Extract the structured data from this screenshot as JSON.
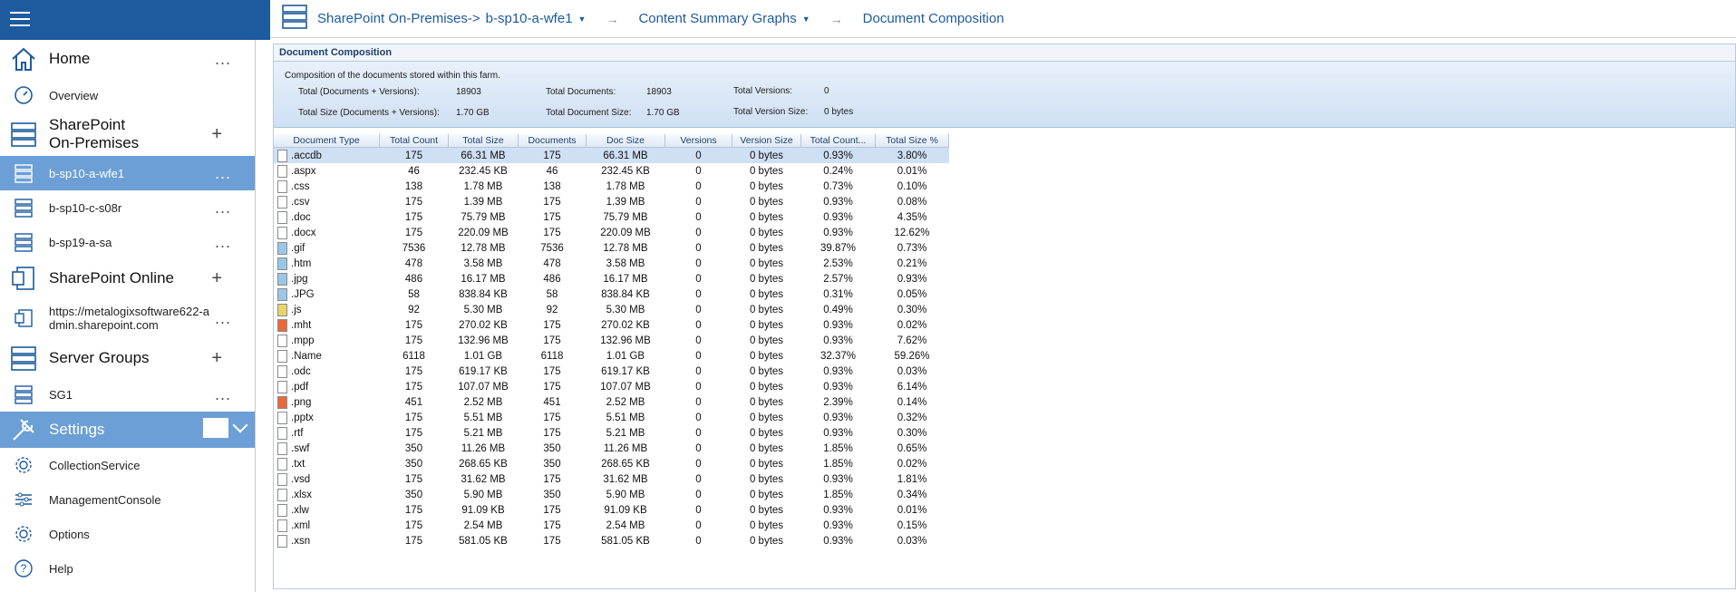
{
  "sidebar": {
    "home": {
      "label": "Home",
      "action": "..."
    },
    "overview": {
      "label": "Overview"
    },
    "sp_onprem": {
      "label_line1": "SharePoint",
      "label_line2": "On-Premises",
      "action": "+"
    },
    "servers": [
      {
        "label": "b-sp10-a-wfe1",
        "action": "..."
      },
      {
        "label": "b-sp10-c-s08r",
        "action": "..."
      },
      {
        "label": "b-sp19-a-sa",
        "action": "..."
      }
    ],
    "sp_online": {
      "label": "SharePoint Online",
      "action": "+"
    },
    "online_tenant": {
      "label_line1": "https://metalogixsoftware622-a",
      "label_line2": "dmin.sharepoint.com",
      "action": "..."
    },
    "server_groups": {
      "label": "Server Groups",
      "action": "+"
    },
    "sg1": {
      "label": "SG1",
      "action": "..."
    },
    "settings": {
      "label": "Settings"
    },
    "settings_items": [
      {
        "label": "CollectionService"
      },
      {
        "label": "ManagementConsole"
      },
      {
        "label": "Options"
      },
      {
        "label": "Help"
      }
    ]
  },
  "breadcrumb": {
    "root": "SharePoint On-Premises->",
    "server": "b-sp10-a-wfe1",
    "graphs": "Content Summary Graphs",
    "current": "Document Composition",
    "separator": "→"
  },
  "panel": {
    "title": "Document Composition",
    "description": "Composition of the documents stored within this farm.",
    "stats": {
      "total_docs_versions_label": "Total (Documents + Versions):",
      "total_docs_versions_value": "18903",
      "total_size_label": "Total Size (Documents + Versions):",
      "total_size_value": "1.70 GB",
      "total_documents_label": "Total Documents:",
      "total_documents_value": "18903",
      "total_doc_size_label": "Total Document Size:",
      "total_doc_size_value": "1.70 GB",
      "total_versions_label": "Total Versions:",
      "total_versions_value": "0",
      "total_version_size_label": "Total Version Size:",
      "total_version_size_value": "0 bytes"
    }
  },
  "table": {
    "columns": [
      "Document Type",
      "Total Count",
      "Total Size",
      "Documents",
      "Doc Size",
      "Versions",
      "Version Size",
      "Total Count...",
      "Total Size %"
    ],
    "rows": [
      [
        ".accdb",
        "175",
        "66.31 MB",
        "175",
        "66.31 MB",
        "0",
        "0 bytes",
        "0.93%",
        "3.80%"
      ],
      [
        ".aspx",
        "46",
        "232.45 KB",
        "46",
        "232.45 KB",
        "0",
        "0 bytes",
        "0.24%",
        "0.01%"
      ],
      [
        ".css",
        "138",
        "1.78 MB",
        "138",
        "1.78 MB",
        "0",
        "0 bytes",
        "0.73%",
        "0.10%"
      ],
      [
        ".csv",
        "175",
        "1.39 MB",
        "175",
        "1.39 MB",
        "0",
        "0 bytes",
        "0.93%",
        "0.08%"
      ],
      [
        ".doc",
        "175",
        "75.79 MB",
        "175",
        "75.79 MB",
        "0",
        "0 bytes",
        "0.93%",
        "4.35%"
      ],
      [
        ".docx",
        "175",
        "220.09 MB",
        "175",
        "220.09 MB",
        "0",
        "0 bytes",
        "0.93%",
        "12.62%"
      ],
      [
        ".gif",
        "7536",
        "12.78 MB",
        "7536",
        "12.78 MB",
        "0",
        "0 bytes",
        "39.87%",
        "0.73%"
      ],
      [
        ".htm",
        "478",
        "3.58 MB",
        "478",
        "3.58 MB",
        "0",
        "0 bytes",
        "2.53%",
        "0.21%"
      ],
      [
        ".jpg",
        "486",
        "16.17 MB",
        "486",
        "16.17 MB",
        "0",
        "0 bytes",
        "2.57%",
        "0.93%"
      ],
      [
        ".JPG",
        "58",
        "838.84 KB",
        "58",
        "838.84 KB",
        "0",
        "0 bytes",
        "0.31%",
        "0.05%"
      ],
      [
        ".js",
        "92",
        "5.30 MB",
        "92",
        "5.30 MB",
        "0",
        "0 bytes",
        "0.49%",
        "0.30%"
      ],
      [
        ".mht",
        "175",
        "270.02 KB",
        "175",
        "270.02 KB",
        "0",
        "0 bytes",
        "0.93%",
        "0.02%"
      ],
      [
        ".mpp",
        "175",
        "132.96 MB",
        "175",
        "132.96 MB",
        "0",
        "0 bytes",
        "0.93%",
        "7.62%"
      ],
      [
        ".Name",
        "6118",
        "1.01 GB",
        "6118",
        "1.01 GB",
        "0",
        "0 bytes",
        "32.37%",
        "59.26%"
      ],
      [
        ".odc",
        "175",
        "619.17 KB",
        "175",
        "619.17 KB",
        "0",
        "0 bytes",
        "0.93%",
        "0.03%"
      ],
      [
        ".pdf",
        "175",
        "107.07 MB",
        "175",
        "107.07 MB",
        "0",
        "0 bytes",
        "0.93%",
        "6.14%"
      ],
      [
        ".png",
        "451",
        "2.52 MB",
        "451",
        "2.52 MB",
        "0",
        "0 bytes",
        "2.39%",
        "0.14%"
      ],
      [
        ".pptx",
        "175",
        "5.51 MB",
        "175",
        "5.51 MB",
        "0",
        "0 bytes",
        "0.93%",
        "0.32%"
      ],
      [
        ".rtf",
        "175",
        "5.21 MB",
        "175",
        "5.21 MB",
        "0",
        "0 bytes",
        "0.93%",
        "0.30%"
      ],
      [
        ".swf",
        "350",
        "11.26 MB",
        "350",
        "11.26 MB",
        "0",
        "0 bytes",
        "1.85%",
        "0.65%"
      ],
      [
        ".txt",
        "350",
        "268.65 KB",
        "350",
        "268.65 KB",
        "0",
        "0 bytes",
        "1.85%",
        "0.02%"
      ],
      [
        ".vsd",
        "175",
        "31.62 MB",
        "175",
        "31.62 MB",
        "0",
        "0 bytes",
        "0.93%",
        "1.81%"
      ],
      [
        ".xlsx",
        "350",
        "5.90 MB",
        "350",
        "5.90 MB",
        "0",
        "0 bytes",
        "1.85%",
        "0.34%"
      ],
      [
        ".xlw",
        "175",
        "91.09 KB",
        "175",
        "91.09 KB",
        "0",
        "0 bytes",
        "0.93%",
        "0.01%"
      ],
      [
        ".xml",
        "175",
        "2.54 MB",
        "175",
        "2.54 MB",
        "0",
        "0 bytes",
        "0.93%",
        "0.15%"
      ],
      [
        ".xsn",
        "175",
        "581.05 KB",
        "175",
        "581.05 KB",
        "0",
        "0 bytes",
        "0.93%",
        "0.03%"
      ]
    ]
  },
  "colors": {
    "brand": "#1d5a9e",
    "selected": "#6b9fd6",
    "row_selected": "#cfe0f5"
  },
  "icons": [
    "menu-icon",
    "home-icon",
    "gauge-icon",
    "server-icon",
    "sharepoint-icon",
    "settings-icon",
    "gear-icon",
    "help-icon"
  ]
}
